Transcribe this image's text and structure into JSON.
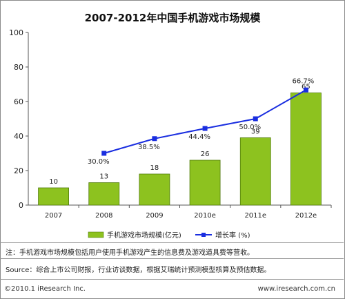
{
  "chart_data": {
    "type": "bar",
    "title": "2007-2012年中国手机游戏市场规模",
    "categories": [
      "2007",
      "2008",
      "2009",
      "2010e",
      "2011e",
      "2012e"
    ],
    "series": [
      {
        "name": "手机游戏市场规模(亿元)",
        "type": "bar",
        "values": [
          10,
          13,
          18,
          26,
          39,
          65
        ],
        "labels": [
          "10",
          "13",
          "18",
          "26",
          "39",
          "65"
        ]
      },
      {
        "name": "增长率 (%)",
        "type": "line",
        "values": [
          null,
          30.0,
          38.5,
          44.4,
          50.0,
          66.7
        ],
        "labels": [
          "",
          "30.0%",
          "38.5%",
          "44.4%",
          "50.0%",
          "66.7%"
        ]
      }
    ],
    "ylim": [
      0,
      100
    ],
    "yticks": [
      "0",
      "20",
      "40",
      "60",
      "80",
      "100"
    ],
    "grid": false,
    "legend_position": "bottom",
    "colors": {
      "bar": "#8dc21f",
      "bar_dark": "#4f7a0a",
      "line": "#1a2ee0"
    }
  },
  "notes": {
    "note": "注：手机游戏市场规模包括用户使用手机游戏产生的信息费及游戏道具费等营收。",
    "source": "Source：综合上市公司财报，行业访谈数据，根据艾瑞统计预测模型核算及预估数据。"
  },
  "footer": {
    "copyright": "©2010.1 iResearch Inc.",
    "website": "www.iresearch.com.cn"
  }
}
